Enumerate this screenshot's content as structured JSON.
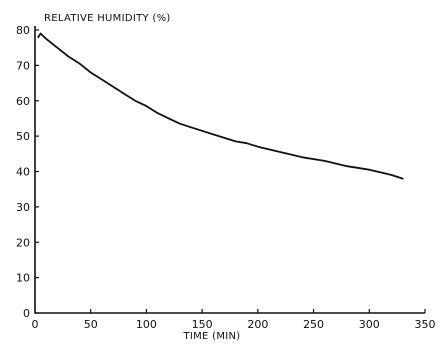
{
  "chart_data": {
    "type": "line",
    "title": "",
    "ylabel": "RELATIVE HUMIDITY (%)",
    "xlabel": "TIME (MIN)",
    "xlim": [
      0,
      350
    ],
    "ylim": [
      0,
      80
    ],
    "x_ticks": [
      0,
      50,
      100,
      150,
      200,
      250,
      300,
      350
    ],
    "y_ticks": [
      0,
      10,
      20,
      30,
      40,
      50,
      60,
      70,
      80
    ],
    "grid": false,
    "series": [
      {
        "x": [
          3,
          5,
          10,
          20,
          30,
          40,
          50,
          60,
          70,
          80,
          90,
          100,
          110,
          120,
          130,
          140,
          150,
          160,
          170,
          180,
          190,
          200,
          220,
          240,
          260,
          280,
          300,
          320,
          330
        ],
        "y": [
          78,
          79,
          77.5,
          75,
          72.5,
          70.5,
          68,
          66,
          64,
          62,
          60,
          58.5,
          56.5,
          55,
          53.5,
          52.5,
          51.5,
          50.5,
          49.5,
          48.5,
          48,
          47,
          45.5,
          44,
          43,
          41.5,
          40.5,
          39,
          38
        ]
      }
    ]
  }
}
